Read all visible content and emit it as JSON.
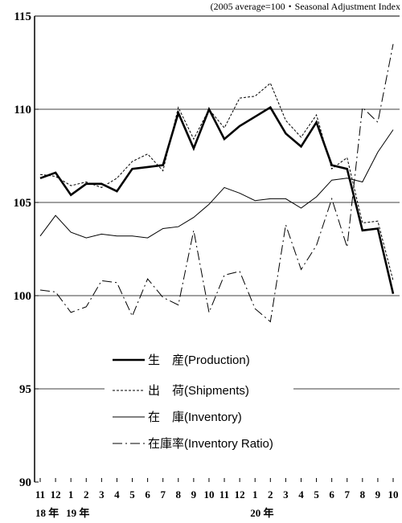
{
  "chart_data": {
    "type": "line",
    "note": "(2005 average=100・Seasonal Adjustment Index",
    "ylim": [
      90,
      115
    ],
    "yticks": [
      90,
      95,
      100,
      105,
      110,
      115
    ],
    "grid_lines": [
      95,
      100,
      105,
      110
    ],
    "categories": [
      "11",
      "12",
      "1",
      "2",
      "3",
      "4",
      "5",
      "6",
      "7",
      "8",
      "9",
      "10",
      "11",
      "12",
      "1",
      "2",
      "3",
      "4",
      "5",
      "6",
      "7",
      "8",
      "9",
      "10"
    ],
    "year_labels": [
      {
        "text": "18 年",
        "index": 0
      },
      {
        "text": "19 年",
        "index": 2
      },
      {
        "text": "20 年",
        "index": 14
      }
    ],
    "legend_placement": "center",
    "series": [
      {
        "name": "生　産(Production)",
        "style": "thick",
        "values": [
          106.3,
          106.6,
          105.4,
          106.0,
          106.0,
          105.6,
          106.8,
          106.9,
          107.0,
          109.8,
          107.9,
          110.0,
          108.4,
          109.1,
          109.6,
          110.1,
          108.7,
          108.0,
          109.3,
          107.0,
          106.8,
          103.5,
          103.6,
          100.1
        ]
      },
      {
        "name": "出　荷(Shipments)",
        "style": "dotted",
        "values": [
          106.5,
          106.4,
          105.9,
          106.1,
          105.8,
          106.3,
          107.2,
          107.6,
          106.7,
          110.1,
          108.4,
          110.0,
          109.0,
          110.6,
          110.7,
          111.4,
          109.4,
          108.5,
          109.7,
          106.8,
          107.4,
          103.9,
          104.0,
          100.8
        ]
      },
      {
        "name": "在　庫(Inventory)",
        "style": "thin",
        "values": [
          103.2,
          104.3,
          103.4,
          103.1,
          103.3,
          103.2,
          103.2,
          103.1,
          103.6,
          103.7,
          104.2,
          104.9,
          105.8,
          105.5,
          105.1,
          105.2,
          105.2,
          104.7,
          105.3,
          106.2,
          106.3,
          106.1,
          107.7,
          108.9
        ]
      },
      {
        "name": "在庫率(Inventory Ratio)",
        "style": "dashdot",
        "values": [
          100.3,
          100.2,
          99.1,
          99.4,
          100.8,
          100.7,
          98.9,
          100.9,
          99.9,
          99.5,
          103.5,
          99.1,
          101.1,
          101.3,
          99.3,
          98.6,
          103.8,
          101.4,
          102.7,
          105.2,
          102.6,
          110.1,
          109.3,
          113.5
        ]
      }
    ]
  }
}
